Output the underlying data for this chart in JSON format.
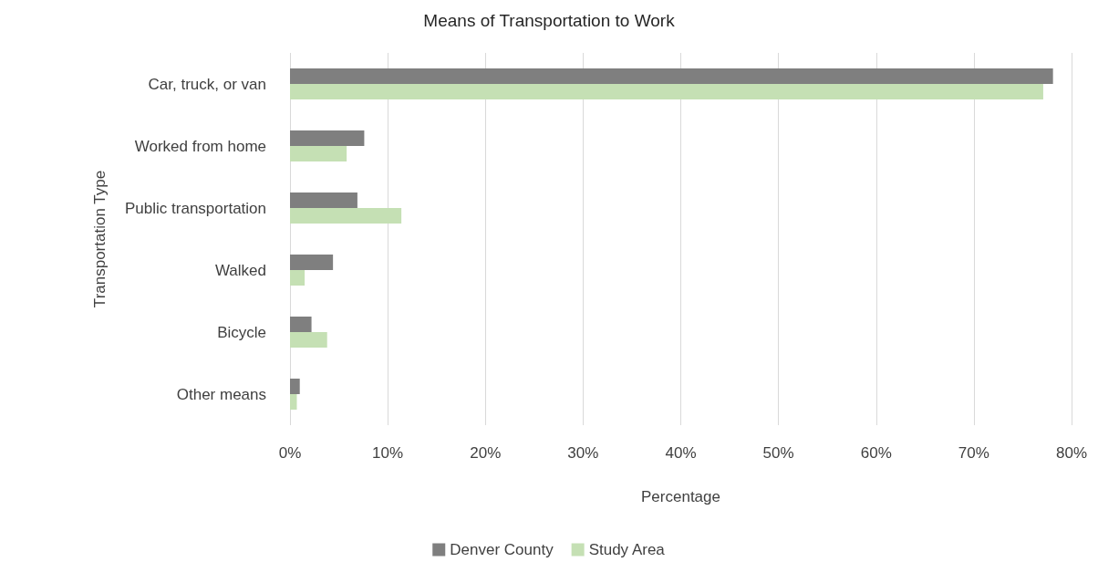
{
  "chart_data": {
    "type": "bar",
    "orientation": "horizontal",
    "title": "Means of Transportation to Work",
    "xlabel": "Percentage",
    "ylabel": "Transportation Type",
    "categories": [
      "Car, truck, or van",
      "Worked from home",
      "Public transportation",
      "Walked",
      "Bicycle",
      "Other means"
    ],
    "series": [
      {
        "name": "Denver County",
        "color": "#7f7f7f",
        "values": [
          78.1,
          7.6,
          6.9,
          4.4,
          2.2,
          1.0
        ]
      },
      {
        "name": "Study Area",
        "color": "#c5e0b4",
        "values": [
          77.1,
          5.8,
          11.4,
          1.5,
          3.8,
          0.7
        ]
      }
    ],
    "xlim": [
      0,
      80
    ],
    "xticks": [
      {
        "value": 0,
        "label": "0%"
      },
      {
        "value": 10,
        "label": "10%"
      },
      {
        "value": 20,
        "label": "20%"
      },
      {
        "value": 30,
        "label": "30%"
      },
      {
        "value": 40,
        "label": "40%"
      },
      {
        "value": 50,
        "label": "50%"
      },
      {
        "value": 60,
        "label": "60%"
      },
      {
        "value": 70,
        "label": "70%"
      },
      {
        "value": 80,
        "label": "80%"
      }
    ],
    "grid": "x",
    "legend": "bottom"
  }
}
